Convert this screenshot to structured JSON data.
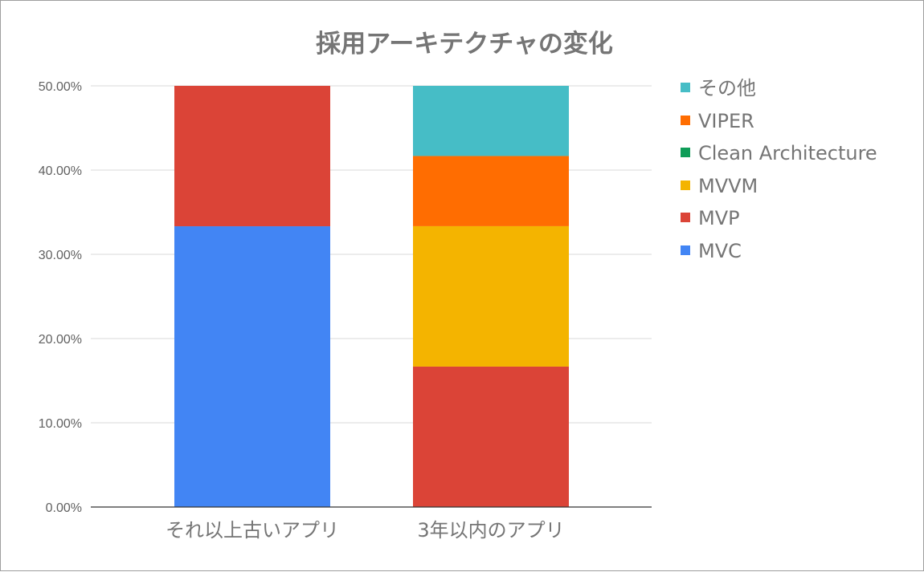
{
  "chart_data": {
    "type": "bar",
    "stacked": true,
    "title": "採用アーキテクチャの変化",
    "xlabel": "",
    "ylabel": "",
    "ylim": [
      0,
      50
    ],
    "yticks": [
      "0.00%",
      "10.00%",
      "20.00%",
      "30.00%",
      "40.00%",
      "50.00%"
    ],
    "ytick_values": [
      0,
      10,
      20,
      30,
      40,
      50
    ],
    "categories": [
      "それ以上古いアプリ",
      "3年以内のアプリ"
    ],
    "series": [
      {
        "name": "MVC",
        "color": "#4285f4",
        "values": [
          33.33,
          0
        ]
      },
      {
        "name": "MVP",
        "color": "#db4437",
        "values": [
          16.67,
          16.67
        ]
      },
      {
        "name": "MVVM",
        "color": "#f4b400",
        "values": [
          0,
          16.67
        ]
      },
      {
        "name": "Clean Architecture",
        "color": "#0f9d58",
        "values": [
          0,
          0
        ]
      },
      {
        "name": "VIPER",
        "color": "#ff6d01",
        "values": [
          0,
          8.33
        ]
      },
      {
        "name": "その他",
        "color": "#46bdc6",
        "values": [
          0,
          8.33
        ]
      }
    ],
    "legend_order": [
      "その他",
      "VIPER",
      "Clean Architecture",
      "MVVM",
      "MVP",
      "MVC"
    ],
    "legend_position": "right",
    "grid": true
  }
}
